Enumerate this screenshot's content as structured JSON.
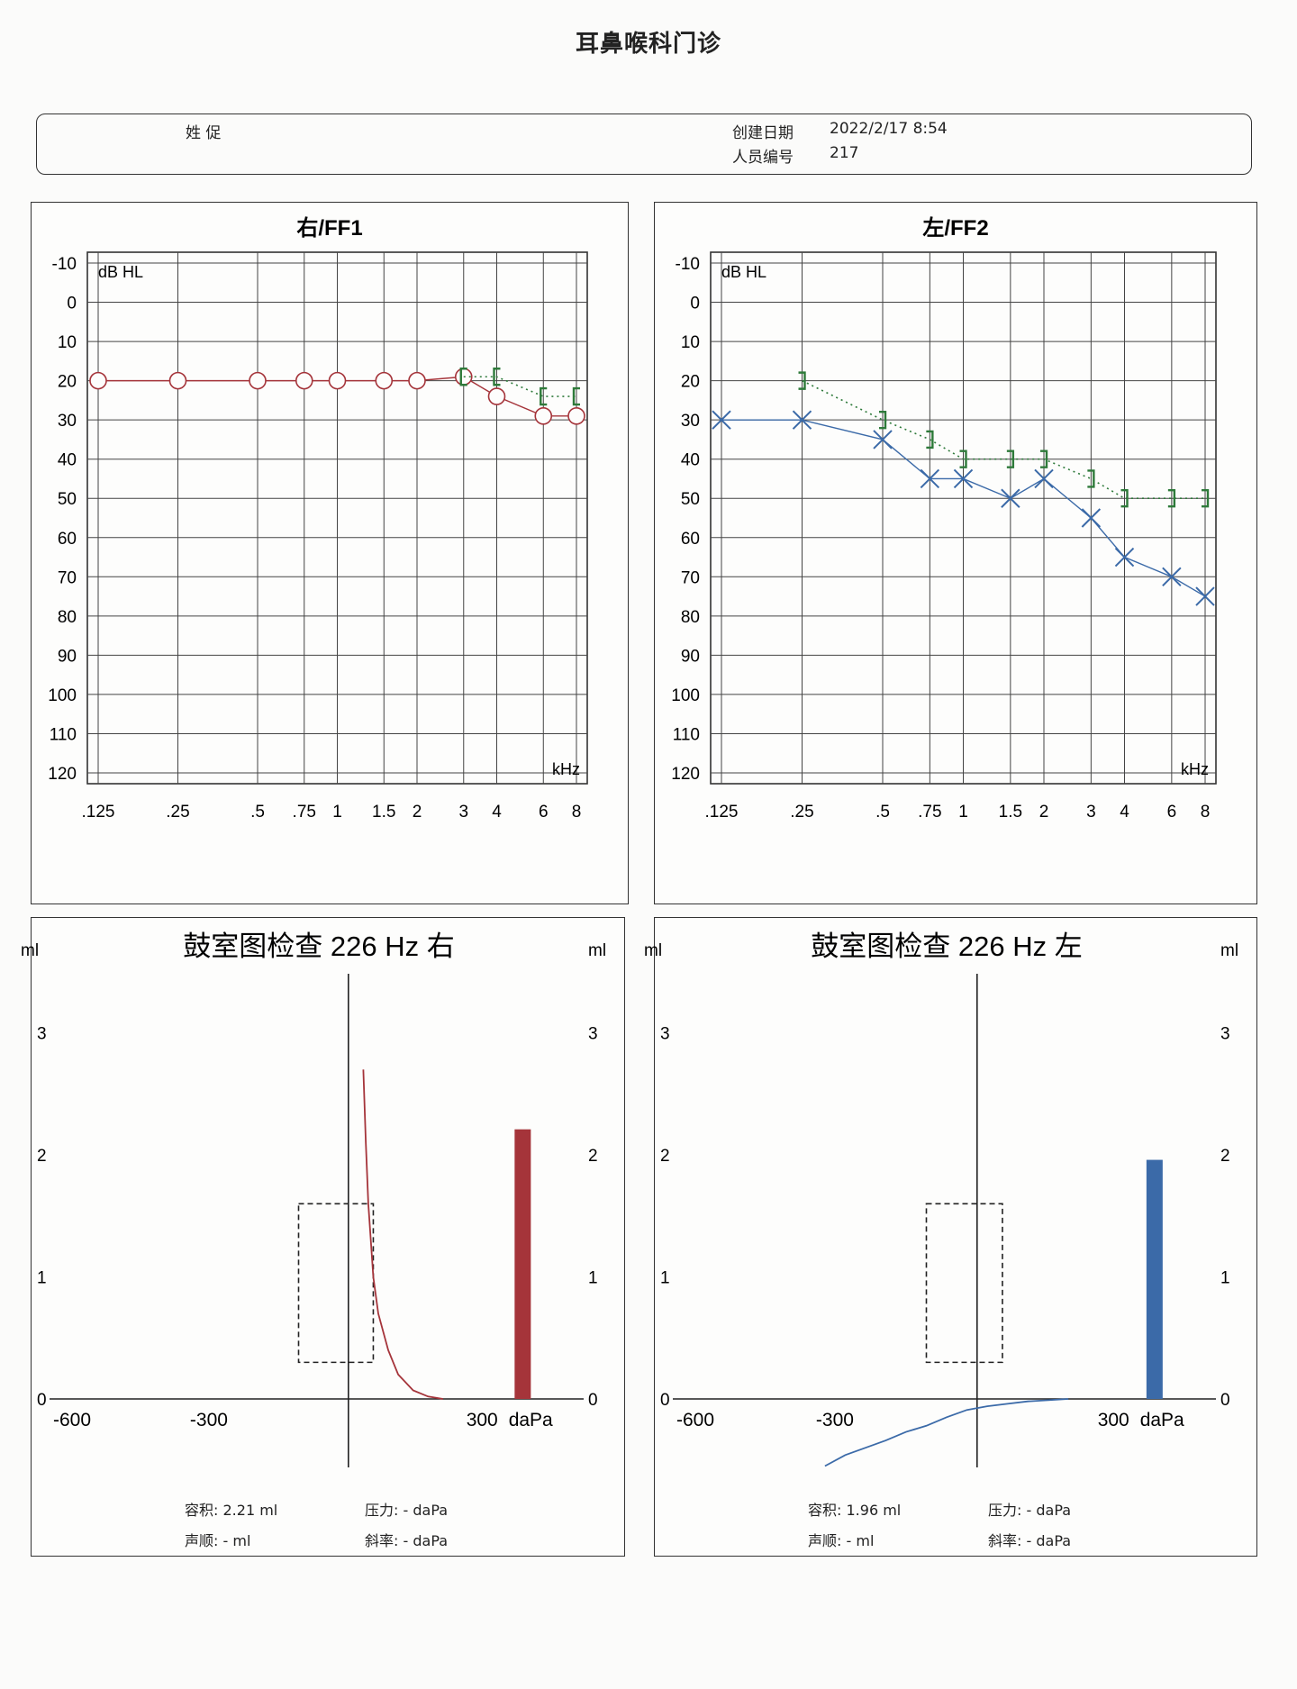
{
  "header": {
    "title": "耳鼻喉科门诊",
    "name_label": "姓 促",
    "created_label": "创建日期",
    "created_value": "2022/2/17 8:54",
    "staff_id_label": "人员编号",
    "staff_id_value": "217"
  },
  "colors": {
    "right_ear": "#a5343a",
    "left_ear": "#3b6aa8",
    "bone": "#2e7a3a",
    "grid": "#333333"
  },
  "chart_data": [
    {
      "type": "line",
      "title": "右/FF1",
      "ylabel": "dB HL",
      "xlabel": "kHz",
      "x": [
        ".125",
        ".25",
        ".5",
        ".75",
        "1",
        "1.5",
        "2",
        "3",
        "4",
        "6",
        "8"
      ],
      "y_ticks": [
        -10,
        0,
        10,
        20,
        30,
        40,
        50,
        60,
        70,
        80,
        90,
        100,
        110,
        120
      ],
      "ylim": [
        -10,
        120
      ],
      "y_inverted": true,
      "grid": true,
      "series": [
        {
          "marker": "circle",
          "color": "#a5343a",
          "line": "solid",
          "x": [
            ".125",
            ".25",
            ".5",
            ".75",
            "1",
            "1.5",
            "2",
            "3",
            "4",
            "6",
            "8"
          ],
          "values": [
            20,
            20,
            20,
            20,
            20,
            20,
            20,
            19,
            24,
            29,
            29
          ]
        },
        {
          "marker": "bracket-left",
          "color": "#2e7a3a",
          "line": "dotted",
          "x": [
            "3",
            "4",
            "6",
            "8"
          ],
          "values": [
            19,
            19,
            24,
            24
          ]
        }
      ]
    },
    {
      "type": "line",
      "title": "左/FF2",
      "ylabel": "dB HL",
      "xlabel": "kHz",
      "x": [
        ".125",
        ".25",
        ".5",
        ".75",
        "1",
        "1.5",
        "2",
        "3",
        "4",
        "6",
        "8"
      ],
      "y_ticks": [
        -10,
        0,
        10,
        20,
        30,
        40,
        50,
        60,
        70,
        80,
        90,
        100,
        110,
        120
      ],
      "ylim": [
        -10,
        120
      ],
      "y_inverted": true,
      "grid": true,
      "series": [
        {
          "marker": "x",
          "color": "#3b6aa8",
          "line": "solid",
          "x": [
            ".125",
            ".25",
            ".5",
            ".75",
            "1",
            "1.5",
            "2",
            "3",
            "4",
            "6",
            "8"
          ],
          "values": [
            30,
            30,
            35,
            45,
            45,
            50,
            45,
            55,
            65,
            70,
            75
          ]
        },
        {
          "marker": "bracket-right",
          "color": "#2e7a3a",
          "line": "dotted",
          "x": [
            ".25",
            ".5",
            ".75",
            "1",
            "1.5",
            "2",
            "3",
            "4",
            "6",
            "8"
          ],
          "values": [
            20,
            30,
            35,
            40,
            40,
            40,
            45,
            50,
            50,
            50
          ]
        }
      ]
    },
    {
      "type": "line",
      "title": "鼓室图检查 226 Hz 右",
      "ylabel": "ml",
      "xlabel": "daPa",
      "x_ticks": [
        "-600",
        "-300",
        "300"
      ],
      "y_ticks": [
        "0",
        "1",
        "2",
        "3"
      ],
      "xlim": [
        -600,
        400
      ],
      "ylim": [
        0,
        3.5
      ],
      "color": "#a5343a",
      "curve": {
        "x": [
          30,
          35,
          40,
          50,
          60,
          80,
          100,
          130,
          160,
          190
        ],
        "y": [
          2.7,
          2.1,
          1.6,
          1.0,
          0.7,
          0.4,
          0.2,
          0.07,
          0.02,
          0.0
        ]
      },
      "bar": {
        "x": 350,
        "value": 2.21
      },
      "dashed_box": {
        "x": [
          -100,
          50
        ],
        "y": [
          0.3,
          1.6
        ]
      }
    },
    {
      "type": "line",
      "title": "鼓室图检查 226 Hz 左",
      "ylabel": "ml",
      "xlabel": "daPa",
      "x_ticks": [
        "-600",
        "-300",
        "300"
      ],
      "y_ticks": [
        "0",
        "1",
        "2",
        "3"
      ],
      "xlim": [
        -600,
        400
      ],
      "ylim": [
        0,
        3.5
      ],
      "color": "#3b6aa8",
      "curve": {
        "x": [
          -300,
          -260,
          -220,
          -180,
          -140,
          -100,
          -60,
          -20,
          20,
          60,
          100,
          140,
          180
        ],
        "y": [
          -0.55,
          -0.46,
          -0.4,
          -0.34,
          -0.27,
          -0.22,
          -0.15,
          -0.09,
          -0.06,
          -0.04,
          -0.02,
          -0.01,
          0.0
        ]
      },
      "bar": {
        "x": 350,
        "value": 1.96
      },
      "dashed_box": {
        "x": [
          -100,
          50
        ],
        "y": [
          0.3,
          1.6
        ]
      }
    }
  ],
  "tympanograms": [
    {
      "volume_label": "容积:",
      "volume_value": "2.21 ml",
      "pressure_label": "压力:",
      "pressure_value": "- daPa",
      "compliance_label": "声顺:",
      "compliance_value": "- ml",
      "gradient_label": "斜率:",
      "gradient_value": "- daPa"
    },
    {
      "volume_label": "容积:",
      "volume_value": "1.96 ml",
      "pressure_label": "压力:",
      "pressure_value": "- daPa",
      "compliance_label": "声顺:",
      "compliance_value": "- ml",
      "gradient_label": "斜率:",
      "gradient_value": "- daPa"
    }
  ]
}
